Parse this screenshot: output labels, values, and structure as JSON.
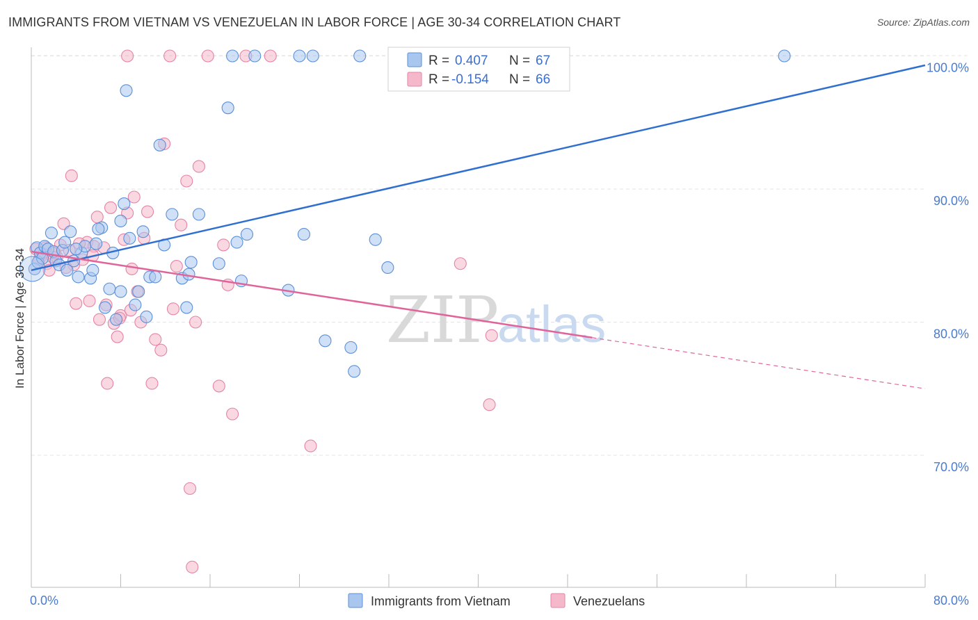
{
  "title": "IMMIGRANTS FROM VIETNAM VS VENEZUELAN IN LABOR FORCE | AGE 30-34 CORRELATION CHART",
  "source": "Source: ZipAtlas.com",
  "watermark": {
    "zip": "ZIP",
    "atlas": "atlas"
  },
  "legend": {
    "rows": [
      {
        "r_label": "R =",
        "r_value": "0.407",
        "n_label": "N =",
        "n_value": "67"
      },
      {
        "r_label": "R =",
        "r_value": "-0.154",
        "n_label": "N =",
        "n_value": "66"
      }
    ]
  },
  "colors": {
    "blue_fill": "#a9c6ee",
    "blue_stroke": "#5a8fd8",
    "blue_line": "#2f6fd0",
    "pink_fill": "#f5b8cb",
    "pink_stroke": "#e583a6",
    "pink_line": "#e0649a",
    "axis_text": "#4a7bd0",
    "grid": "#e3e3e3"
  },
  "chart_data": {
    "type": "scatter",
    "title": "IMMIGRANTS FROM VIETNAM VS VENEZUELAN IN LABOR FORCE | AGE 30-34 CORRELATION CHART",
    "xlabel": "",
    "ylabel": "In Labor Force | Age 30-34",
    "xlim": [
      0,
      80
    ],
    "ylim": [
      61,
      101
    ],
    "x_tick_labels": [
      "0.0%",
      "80.0%"
    ],
    "y_ticks": [
      70,
      80,
      90,
      100
    ],
    "y_tick_labels": [
      "70.0%",
      "80.0%",
      "90.0%",
      "100.0%"
    ],
    "grid": true,
    "legend_position": "top-center",
    "series": [
      {
        "name": "Immigrants from Vietnam",
        "color": "#a9c6ee",
        "trend": {
          "x": [
            0,
            80
          ],
          "y": [
            83.9,
            99.3
          ],
          "dashed_from": null
        },
        "points": [
          [
            0.3,
            84.0
          ],
          [
            0.5,
            85.6
          ],
          [
            0.6,
            84.5
          ],
          [
            0.8,
            85.2
          ],
          [
            1.0,
            84.8
          ],
          [
            1.2,
            85.7
          ],
          [
            1.5,
            85.5
          ],
          [
            1.8,
            86.7
          ],
          [
            2.0,
            85.3
          ],
          [
            2.2,
            84.6
          ],
          [
            2.5,
            84.3
          ],
          [
            2.8,
            85.4
          ],
          [
            3.0,
            86.0
          ],
          [
            3.2,
            83.9
          ],
          [
            3.5,
            86.8
          ],
          [
            3.8,
            84.6
          ],
          [
            4.2,
            83.4
          ],
          [
            4.5,
            85.2
          ],
          [
            4.8,
            85.7
          ],
          [
            5.3,
            83.3
          ],
          [
            5.5,
            83.9
          ],
          [
            5.8,
            85.9
          ],
          [
            6.3,
            87.1
          ],
          [
            6.6,
            81.1
          ],
          [
            7.0,
            82.5
          ],
          [
            7.3,
            85.2
          ],
          [
            7.6,
            80.2
          ],
          [
            8.0,
            87.6
          ],
          [
            8.3,
            88.9
          ],
          [
            8.5,
            97.4
          ],
          [
            8.8,
            86.3
          ],
          [
            9.3,
            81.3
          ],
          [
            9.6,
            82.3
          ],
          [
            10.0,
            86.8
          ],
          [
            10.3,
            80.4
          ],
          [
            10.6,
            83.4
          ],
          [
            11.1,
            83.4
          ],
          [
            11.5,
            93.3
          ],
          [
            11.9,
            85.8
          ],
          [
            12.6,
            88.1
          ],
          [
            13.5,
            83.3
          ],
          [
            13.9,
            81.1
          ],
          [
            14.1,
            83.6
          ],
          [
            14.3,
            84.5
          ],
          [
            15.0,
            88.1
          ],
          [
            16.8,
            84.4
          ],
          [
            17.6,
            96.1
          ],
          [
            18.0,
            100.0
          ],
          [
            18.4,
            86.0
          ],
          [
            18.8,
            83.1
          ],
          [
            19.3,
            86.6
          ],
          [
            20.0,
            100.0
          ],
          [
            23.0,
            82.4
          ],
          [
            24.0,
            100.0
          ],
          [
            24.4,
            86.6
          ],
          [
            25.2,
            100.0
          ],
          [
            26.3,
            78.6
          ],
          [
            28.6,
            78.1
          ],
          [
            28.9,
            76.3
          ],
          [
            29.4,
            100.0
          ],
          [
            30.8,
            86.2
          ],
          [
            31.9,
            84.1
          ],
          [
            37.4,
            100.0
          ],
          [
            67.4,
            100.0
          ],
          [
            8.0,
            82.3
          ],
          [
            6.0,
            87.0
          ],
          [
            4.0,
            85.5
          ]
        ]
      },
      {
        "name": "Venezuelans",
        "color": "#f5b8cb",
        "trend": {
          "x": [
            0,
            80
          ],
          "y": [
            85.3,
            75.0
          ],
          "dashed_from": 50.2
        },
        "points": [
          [
            0.4,
            85.5
          ],
          [
            0.7,
            84.7
          ],
          [
            1.1,
            85.1
          ],
          [
            1.4,
            84.4
          ],
          [
            1.6,
            83.9
          ],
          [
            2.3,
            84.9
          ],
          [
            2.6,
            85.8
          ],
          [
            2.9,
            87.4
          ],
          [
            3.4,
            85.4
          ],
          [
            3.6,
            91.0
          ],
          [
            3.8,
            84.3
          ],
          [
            4.0,
            81.4
          ],
          [
            4.6,
            84.7
          ],
          [
            5.0,
            86.0
          ],
          [
            5.2,
            81.6
          ],
          [
            5.6,
            85.7
          ],
          [
            5.9,
            87.9
          ],
          [
            6.1,
            80.2
          ],
          [
            6.5,
            85.6
          ],
          [
            6.8,
            75.4
          ],
          [
            7.1,
            88.6
          ],
          [
            7.4,
            79.9
          ],
          [
            7.7,
            78.9
          ],
          [
            8.0,
            80.5
          ],
          [
            8.3,
            86.2
          ],
          [
            8.6,
            88.2
          ],
          [
            8.9,
            80.9
          ],
          [
            9.2,
            89.4
          ],
          [
            9.5,
            82.3
          ],
          [
            9.8,
            80.0
          ],
          [
            10.1,
            86.3
          ],
          [
            10.4,
            88.3
          ],
          [
            10.8,
            75.4
          ],
          [
            11.1,
            78.7
          ],
          [
            11.6,
            77.9
          ],
          [
            11.9,
            93.4
          ],
          [
            12.4,
            100.0
          ],
          [
            12.7,
            81.0
          ],
          [
            13.0,
            84.2
          ],
          [
            13.4,
            87.3
          ],
          [
            13.9,
            90.6
          ],
          [
            14.2,
            67.5
          ],
          [
            14.4,
            61.6
          ],
          [
            14.7,
            80.0
          ],
          [
            15.0,
            91.7
          ],
          [
            15.8,
            100.0
          ],
          [
            16.8,
            75.2
          ],
          [
            17.2,
            85.8
          ],
          [
            17.6,
            82.8
          ],
          [
            18.0,
            73.1
          ],
          [
            19.2,
            100.0
          ],
          [
            21.4,
            100.0
          ],
          [
            25.0,
            70.7
          ],
          [
            38.4,
            84.4
          ],
          [
            41.0,
            73.8
          ],
          [
            41.2,
            79.0
          ],
          [
            8.6,
            100.0
          ],
          [
            1.9,
            84.9
          ],
          [
            2.1,
            85.2
          ],
          [
            3.1,
            84.1
          ],
          [
            4.3,
            85.9
          ],
          [
            6.7,
            81.3
          ],
          [
            7.9,
            80.3
          ],
          [
            9.0,
            84.0
          ],
          [
            1.3,
            85.6
          ],
          [
            5.5,
            85.0
          ]
        ]
      }
    ]
  },
  "bottom_legend": [
    {
      "label": "Immigrants from Vietnam"
    },
    {
      "label": "Venezuelans"
    }
  ]
}
